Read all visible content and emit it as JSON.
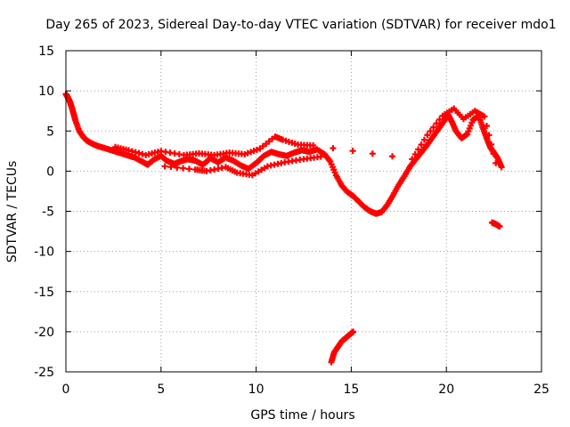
{
  "chart_data": {
    "type": "scatter",
    "title": "Day 265 of 2023, Sidereal Day-to-day VTEC variation (SDTVAR) for receiver mdo1",
    "xlabel": "GPS time / hours",
    "ylabel": "SDTVAR / TECUs",
    "xlim": [
      0,
      25
    ],
    "ylim": [
      -25,
      15
    ],
    "xticks": [
      "0",
      "5",
      "10",
      "15",
      "20",
      "25"
    ],
    "yticks": [
      "-25",
      "-20",
      "-15",
      "-10",
      "-5",
      "0",
      "5",
      "10",
      "15"
    ],
    "grid": true,
    "marker": "plus",
    "series_color": "#ff0000",
    "series": [
      {
        "name": "track-main",
        "points": [
          [
            0.0,
            9.6
          ],
          [
            0.1,
            9.2
          ],
          [
            0.2,
            8.7
          ],
          [
            0.3,
            8.0
          ],
          [
            0.4,
            7.2
          ],
          [
            0.5,
            6.3
          ],
          [
            0.7,
            5.0
          ],
          [
            0.9,
            4.3
          ],
          [
            1.1,
            3.8
          ],
          [
            1.4,
            3.4
          ],
          [
            1.7,
            3.1
          ],
          [
            2.0,
            2.9
          ],
          [
            2.4,
            2.6
          ],
          [
            2.8,
            2.3
          ],
          [
            3.2,
            2.0
          ],
          [
            3.6,
            1.7
          ],
          [
            4.0,
            1.2
          ],
          [
            4.3,
            0.8
          ],
          [
            4.6,
            1.4
          ],
          [
            5.0,
            1.9
          ],
          [
            5.3,
            1.3
          ],
          [
            5.7,
            0.9
          ],
          [
            6.0,
            1.2
          ],
          [
            6.4,
            1.5
          ],
          [
            6.8,
            1.3
          ],
          [
            7.2,
            0.8
          ],
          [
            7.6,
            1.6
          ],
          [
            8.0,
            1.1
          ],
          [
            8.4,
            1.7
          ],
          [
            8.8,
            1.3
          ],
          [
            9.2,
            0.7
          ],
          [
            9.6,
            0.3
          ],
          [
            10.0,
            1.0
          ],
          [
            10.4,
            1.9
          ],
          [
            10.8,
            2.4
          ],
          [
            11.2,
            2.1
          ],
          [
            11.6,
            1.9
          ],
          [
            12.0,
            2.3
          ],
          [
            12.4,
            2.6
          ],
          [
            12.8,
            2.4
          ],
          [
            13.2,
            2.7
          ],
          [
            13.6,
            2.1
          ],
          [
            13.9,
            1.2
          ],
          [
            14.2,
            -0.5
          ],
          [
            14.5,
            -1.8
          ],
          [
            14.8,
            -2.6
          ],
          [
            15.1,
            -3.1
          ],
          [
            15.4,
            -3.8
          ],
          [
            15.7,
            -4.5
          ],
          [
            16.0,
            -5.0
          ],
          [
            16.3,
            -5.3
          ],
          [
            16.6,
            -5.1
          ],
          [
            16.9,
            -4.2
          ],
          [
            17.2,
            -3.0
          ],
          [
            17.5,
            -1.7
          ],
          [
            17.8,
            -0.6
          ],
          [
            18.1,
            0.6
          ],
          [
            18.4,
            1.5
          ],
          [
            18.7,
            2.4
          ],
          [
            19.0,
            3.3
          ],
          [
            19.3,
            4.3
          ],
          [
            19.6,
            5.3
          ],
          [
            19.9,
            6.3
          ],
          [
            20.1,
            7.0
          ],
          [
            20.3,
            6.1
          ],
          [
            20.5,
            5.0
          ],
          [
            20.8,
            4.1
          ],
          [
            21.1,
            4.6
          ],
          [
            21.4,
            6.4
          ],
          [
            21.7,
            6.9
          ],
          [
            21.9,
            5.5
          ],
          [
            22.1,
            4.2
          ],
          [
            22.3,
            3.0
          ],
          [
            22.5,
            2.3
          ],
          [
            22.7,
            1.6
          ],
          [
            22.9,
            0.5
          ]
        ]
      },
      {
        "name": "track-upper",
        "points": [
          [
            2.6,
            3.0
          ],
          [
            3.3,
            2.6
          ],
          [
            4.2,
            2.0
          ],
          [
            5.0,
            2.5
          ],
          [
            6.2,
            2.0
          ],
          [
            7.0,
            2.2
          ],
          [
            7.8,
            2.0
          ],
          [
            8.6,
            2.3
          ],
          [
            9.4,
            2.1
          ],
          [
            10.2,
            2.8
          ],
          [
            11.0,
            4.3
          ],
          [
            11.4,
            3.9
          ],
          [
            12.2,
            3.3
          ],
          [
            13.0,
            3.2
          ],
          [
            18.2,
            1.5
          ],
          [
            19.0,
            4.5
          ],
          [
            19.8,
            6.9
          ],
          [
            20.4,
            7.8
          ],
          [
            20.9,
            6.5
          ],
          [
            21.5,
            7.5
          ],
          [
            22.0,
            6.8
          ],
          [
            22.6,
            1.0
          ]
        ]
      },
      {
        "name": "track-lower",
        "points": [
          [
            5.2,
            0.6
          ],
          [
            6.8,
            0.2
          ],
          [
            7.4,
            0.0
          ],
          [
            8.4,
            0.5
          ],
          [
            9.0,
            -0.2
          ],
          [
            9.8,
            -0.5
          ],
          [
            10.6,
            0.6
          ],
          [
            11.5,
            1.1
          ],
          [
            12.5,
            1.5
          ],
          [
            13.4,
            1.8
          ]
        ]
      },
      {
        "name": "track-tail",
        "points": [
          [
            22.4,
            -6.4
          ],
          [
            22.6,
            -6.6
          ],
          [
            22.8,
            -6.9
          ]
        ]
      },
      {
        "name": "track-dip",
        "points": [
          [
            13.95,
            -23.8
          ],
          [
            14.1,
            -22.6
          ],
          [
            14.3,
            -21.9
          ],
          [
            14.5,
            -21.2
          ],
          [
            14.7,
            -20.8
          ],
          [
            14.9,
            -20.4
          ],
          [
            15.1,
            -20.0
          ]
        ]
      }
    ]
  }
}
